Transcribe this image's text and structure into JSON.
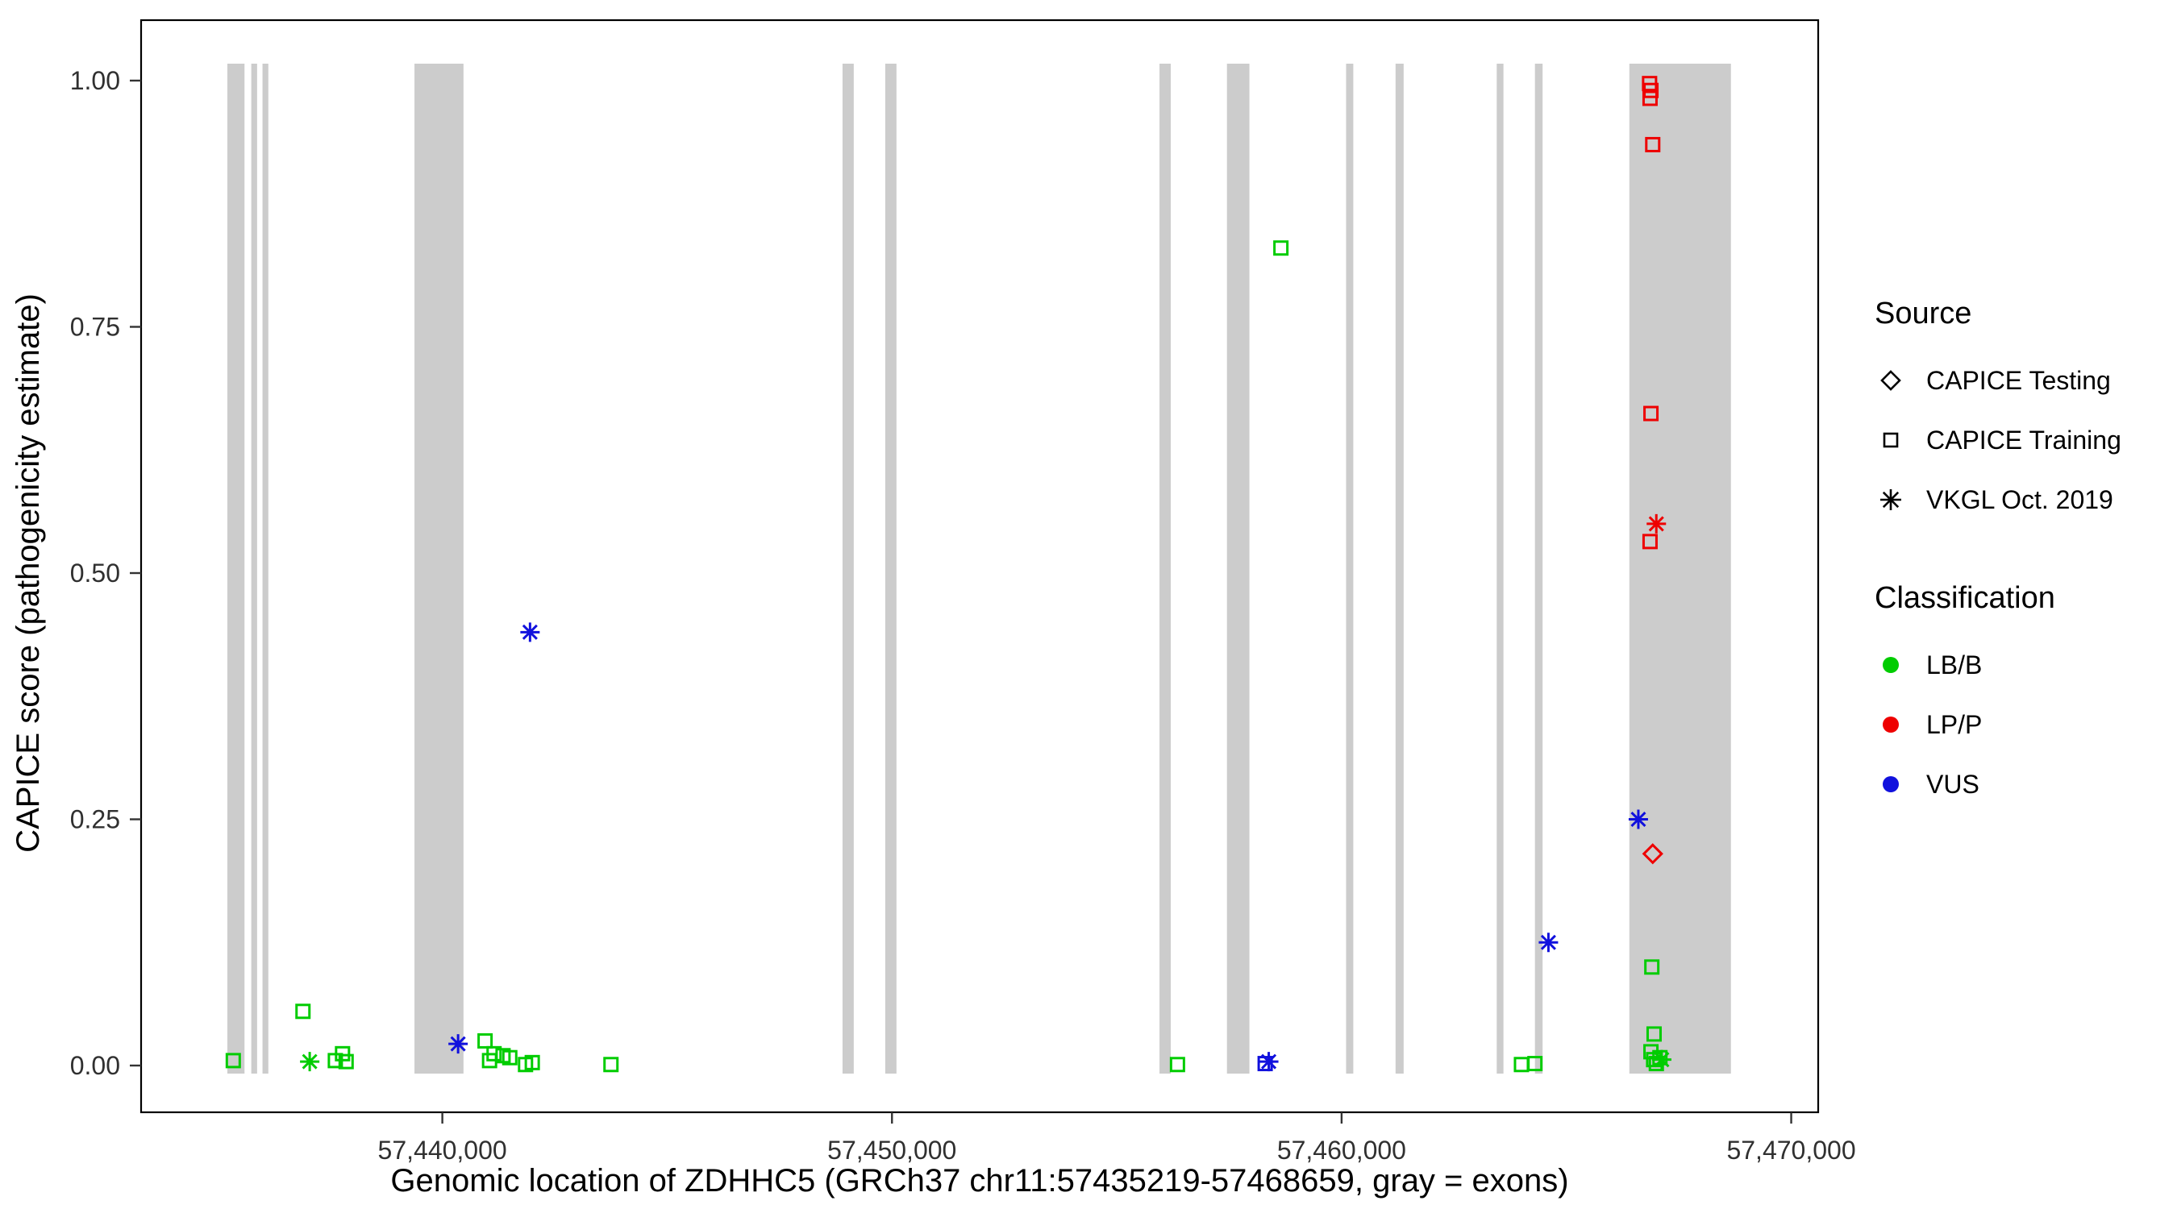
{
  "legend": {
    "source": {
      "title": "Source",
      "items": [
        {
          "label": "CAPICE Testing",
          "shape": "diamond"
        },
        {
          "label": "CAPICE Training",
          "shape": "square"
        },
        {
          "label": "VKGL Oct. 2019",
          "shape": "asterisk"
        }
      ]
    },
    "classification": {
      "title": "Classification",
      "items": [
        {
          "label": "LB/B",
          "color": "#00cc00"
        },
        {
          "label": "LP/P",
          "color": "#ee0000"
        },
        {
          "label": "VUS",
          "color": "#1111dd"
        }
      ]
    }
  },
  "chart_data": {
    "type": "scatter",
    "title": "",
    "xlabel": "Genomic location of ZDHHC5 (GRCh37 chr11:57435219-57468659, gray = exons)",
    "ylabel": "CAPICE score (pathogenicity estimate)",
    "xlim": [
      57433300,
      57470600
    ],
    "ylim": [
      0,
      1
    ],
    "x_ticks": [
      {
        "value": 57440000,
        "label": "57,440,000"
      },
      {
        "value": 57450000,
        "label": "57,450,000"
      },
      {
        "value": 57460000,
        "label": "57,460,000"
      },
      {
        "value": 57470000,
        "label": "57,470,000"
      }
    ],
    "y_ticks": [
      {
        "value": 0.0,
        "label": "0.00"
      },
      {
        "value": 0.25,
        "label": "0.25"
      },
      {
        "value": 0.5,
        "label": "0.50"
      },
      {
        "value": 0.75,
        "label": "0.75"
      },
      {
        "value": 1.0,
        "label": "1.00"
      }
    ],
    "grid": false,
    "legend_position": "right",
    "exon_color": "#cccccc",
    "exons": [
      [
        57435219,
        57435600
      ],
      [
        57435750,
        57435880
      ],
      [
        57436000,
        57436130
      ],
      [
        57439380,
        57440470
      ],
      [
        57448900,
        57449150
      ],
      [
        57449850,
        57450100
      ],
      [
        57455950,
        57456200
      ],
      [
        57457450,
        57457950
      ],
      [
        57460100,
        57460260
      ],
      [
        57461200,
        57461380
      ],
      [
        57463450,
        57463600
      ],
      [
        57464300,
        57464470
      ],
      [
        57466400,
        57468659
      ]
    ],
    "colors": {
      "LB/B": "#00cc00",
      "LP/P": "#ee0000",
      "VUS": "#1111dd"
    },
    "shapes": {
      "training": "open-square",
      "testing": "open-diamond",
      "vkgl": "asterisk"
    },
    "points": [
      [
        57435350,
        0.005,
        "training",
        "LB/B"
      ],
      [
        57436900,
        0.055,
        "training",
        "LB/B"
      ],
      [
        57437050,
        0.004,
        "vkgl",
        "LB/B"
      ],
      [
        57437620,
        0.005,
        "training",
        "LB/B"
      ],
      [
        57437780,
        0.012,
        "training",
        "LB/B"
      ],
      [
        57437860,
        0.004,
        "training",
        "LB/B"
      ],
      [
        57440350,
        0.022,
        "vkgl",
        "VUS"
      ],
      [
        57440950,
        0.025,
        "training",
        "LB/B"
      ],
      [
        57441050,
        0.005,
        "training",
        "LB/B"
      ],
      [
        57441150,
        0.012,
        "training",
        "LB/B"
      ],
      [
        57441350,
        0.01,
        "training",
        "LB/B"
      ],
      [
        57441500,
        0.008,
        "training",
        "LB/B"
      ],
      [
        57441850,
        0.001,
        "training",
        "LB/B"
      ],
      [
        57441950,
        0.44,
        "vkgl",
        "VUS"
      ],
      [
        57442000,
        0.003,
        "training",
        "LB/B"
      ],
      [
        57443750,
        0.001,
        "training",
        "LB/B"
      ],
      [
        57456350,
        0.001,
        "training",
        "LB/B"
      ],
      [
        57458300,
        0.002,
        "training",
        "VUS"
      ],
      [
        57458380,
        0.004,
        "vkgl",
        "VUS"
      ],
      [
        57458650,
        0.83,
        "training",
        "LB/B"
      ],
      [
        57464000,
        0.001,
        "training",
        "LB/B"
      ],
      [
        57464300,
        0.002,
        "training",
        "LB/B"
      ],
      [
        57464600,
        0.125,
        "vkgl",
        "VUS"
      ],
      [
        57466600,
        0.25,
        "vkgl",
        "VUS"
      ],
      [
        57466850,
        0.997,
        "training",
        "LP/P"
      ],
      [
        57466880,
        0.99,
        "training",
        "LP/P"
      ],
      [
        57466860,
        0.982,
        "training",
        "LP/P"
      ],
      [
        57466920,
        0.935,
        "training",
        "LP/P"
      ],
      [
        57466880,
        0.662,
        "training",
        "LP/P"
      ],
      [
        57466860,
        0.532,
        "training",
        "LP/P"
      ],
      [
        57467000,
        0.55,
        "vkgl",
        "LP/P"
      ],
      [
        57466920,
        0.215,
        "testing",
        "LP/P"
      ],
      [
        57466900,
        0.1,
        "training",
        "LB/B"
      ],
      [
        57466950,
        0.032,
        "training",
        "LB/B"
      ],
      [
        57466880,
        0.014,
        "training",
        "LB/B"
      ],
      [
        57466940,
        0.006,
        "training",
        "LB/B"
      ],
      [
        57467000,
        0.002,
        "training",
        "LB/B"
      ],
      [
        57467080,
        0.008,
        "training",
        "LB/B"
      ],
      [
        57467120,
        0.006,
        "vkgl",
        "LB/B"
      ]
    ]
  }
}
